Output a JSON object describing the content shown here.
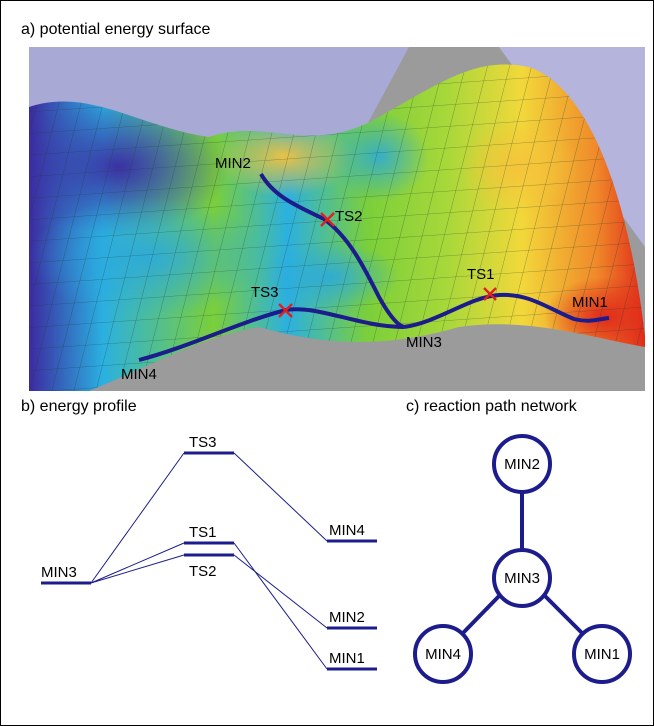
{
  "panels": {
    "surface": {
      "title": "a) potential energy surface",
      "labels": {
        "min1": "MIN1",
        "min2": "MIN2",
        "min3": "MIN3",
        "min4": "MIN4",
        "ts1": "TS1",
        "ts2": "TS2",
        "ts3": "TS3"
      },
      "colors": {
        "background": "#a9a9d6",
        "floor": "#9b9b9b",
        "path": "#1c1c8c",
        "ts_marker": "#e02020",
        "low": "#3c2aa0",
        "mid_low": "#2bb0e0",
        "mid": "#7bcf3a",
        "mid_high": "#f2d83a",
        "high": "#e02a1a"
      }
    },
    "profile": {
      "title": "b) energy profile",
      "levels": {
        "min3": "MIN3",
        "ts3": "TS3",
        "ts1": "TS1",
        "ts2": "TS2",
        "min4": "MIN4",
        "min2": "MIN2",
        "min1": "MIN1"
      },
      "line_color": "#1c1c8c"
    },
    "network": {
      "title": "c) reaction path network",
      "nodes": {
        "min2": "MIN2",
        "min3": "MIN3",
        "min4": "MIN4",
        "min1": "MIN1"
      },
      "line_color": "#1c1c8c"
    }
  }
}
